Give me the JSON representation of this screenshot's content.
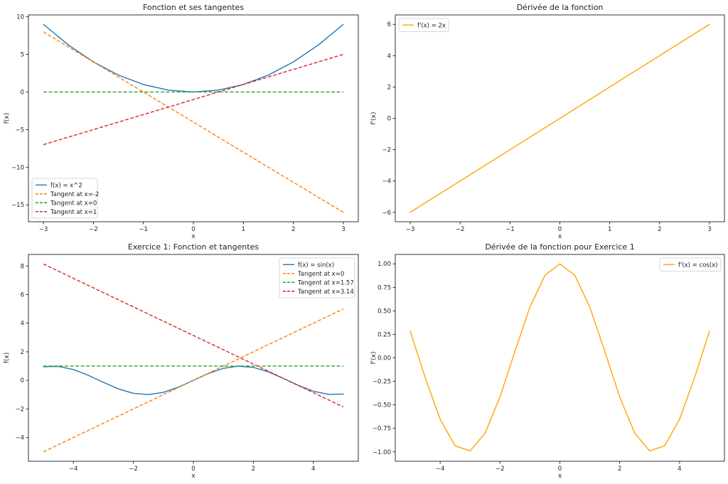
{
  "chart_data": [
    {
      "type": "line",
      "title": "Fonction et ses tangentes",
      "xlabel": "x",
      "ylabel": "f(x)",
      "xlim": [
        -3.3,
        3.3
      ],
      "ylim": [
        -17.25,
        10.25
      ],
      "xticks": [
        -3,
        -2,
        -1,
        0,
        1,
        2,
        3
      ],
      "yticks": [
        -15,
        -10,
        -5,
        0,
        5,
        10
      ],
      "xtick_labels": [
        "−3",
        "−2",
        "−1",
        "0",
        "1",
        "2",
        "3"
      ],
      "ytick_labels": [
        "−15",
        "−10",
        "−5",
        "0",
        "5",
        "10"
      ],
      "legend_position": "lower-left",
      "series": [
        {
          "name": "f(x) = x^2",
          "color": "#1f77b4",
          "style": "solid",
          "x": [
            -3,
            -2.5,
            -2,
            -1.5,
            -1,
            -0.5,
            0,
            0.5,
            1,
            1.5,
            2,
            2.5,
            3
          ],
          "y": [
            9,
            6.25,
            4,
            2.25,
            1,
            0.25,
            0,
            0.25,
            1,
            2.25,
            4,
            6.25,
            9
          ]
        },
        {
          "name": "Tangent at x=-2",
          "color": "#ff7f0e",
          "style": "dashed",
          "x": [
            -3,
            3
          ],
          "y": [
            8,
            -16
          ]
        },
        {
          "name": "Tangent at x=0",
          "color": "#2ca02c",
          "style": "dashed",
          "x": [
            -3,
            3
          ],
          "y": [
            0,
            0
          ]
        },
        {
          "name": "Tangent at x=1",
          "color": "#d62728",
          "style": "dashed",
          "x": [
            -3,
            3
          ],
          "y": [
            -7,
            5
          ]
        }
      ]
    },
    {
      "type": "line",
      "title": "Dérivée de la fonction",
      "xlabel": "x",
      "ylabel": "f'(x)",
      "xlim": [
        -3.3,
        3.3
      ],
      "ylim": [
        -6.6,
        6.6
      ],
      "xticks": [
        -3,
        -2,
        -1,
        0,
        1,
        2,
        3
      ],
      "yticks": [
        -6,
        -4,
        -2,
        0,
        2,
        4,
        6
      ],
      "xtick_labels": [
        "−3",
        "−2",
        "−1",
        "0",
        "1",
        "2",
        "3"
      ],
      "ytick_labels": [
        "−6",
        "−4",
        "−2",
        "0",
        "2",
        "4",
        "6"
      ],
      "legend_position": "upper-left",
      "series": [
        {
          "name": "f'(x) = 2x",
          "color": "#ffa500",
          "style": "solid",
          "x": [
            -3,
            3
          ],
          "y": [
            -6,
            6
          ]
        }
      ]
    },
    {
      "type": "line",
      "title": "Exercice 1: Fonction et tangentes",
      "xlabel": "x",
      "ylabel": "f(x)",
      "xlim": [
        -5.5,
        5.5
      ],
      "ylim": [
        -5.66,
        8.81
      ],
      "xticks": [
        -4,
        -2,
        0,
        2,
        4
      ],
      "yticks": [
        -4,
        -2,
        0,
        2,
        4,
        6,
        8
      ],
      "xtick_labels": [
        "−4",
        "−2",
        "0",
        "2",
        "4"
      ],
      "ytick_labels": [
        "−4",
        "−2",
        "0",
        "2",
        "4",
        "6",
        "8"
      ],
      "legend_position": "upper-right",
      "series": [
        {
          "name": "f(x) = sin(x)",
          "color": "#1f77b4",
          "style": "solid",
          "x": [
            -5,
            -4.5,
            -4,
            -3.5,
            -3,
            -2.5,
            -2,
            -1.5,
            -1,
            -0.5,
            0,
            0.5,
            1,
            1.5,
            2,
            2.5,
            3,
            3.5,
            4,
            4.5,
            5
          ],
          "y": [
            0.959,
            0.978,
            0.757,
            0.351,
            -0.141,
            -0.598,
            -0.909,
            -0.997,
            -0.841,
            -0.479,
            0,
            0.479,
            0.841,
            0.997,
            0.909,
            0.598,
            0.141,
            -0.351,
            -0.757,
            -0.978,
            -0.959
          ]
        },
        {
          "name": "Tangent at x=0",
          "color": "#ff7f0e",
          "style": "dashed",
          "x": [
            -5,
            5
          ],
          "y": [
            -5,
            5
          ]
        },
        {
          "name": "Tangent at x=1.57",
          "color": "#2ca02c",
          "style": "dashed",
          "x": [
            -5,
            5
          ],
          "y": [
            1,
            1
          ]
        },
        {
          "name": "Tangent at x=3.14",
          "color": "#d62728",
          "style": "dashed",
          "x": [
            -5,
            5
          ],
          "y": [
            8.14,
            -1.86
          ]
        }
      ]
    },
    {
      "type": "line",
      "title": "Dérivée de la fonction pour Exercice 1",
      "xlabel": "x",
      "ylabel": "f'(x)",
      "xlim": [
        -5.5,
        5.5
      ],
      "ylim": [
        -1.1,
        1.1
      ],
      "xticks": [
        -4,
        -2,
        0,
        2,
        4
      ],
      "yticks": [
        -1.0,
        -0.75,
        -0.5,
        -0.25,
        0.0,
        0.25,
        0.5,
        0.75,
        1.0
      ],
      "xtick_labels": [
        "−4",
        "−2",
        "0",
        "2",
        "4"
      ],
      "ytick_labels": [
        "−1.00",
        "−0.75",
        "−0.50",
        "−0.25",
        "0.00",
        "0.25",
        "0.50",
        "0.75",
        "1.00"
      ],
      "legend_position": "upper-right",
      "series": [
        {
          "name": "f'(x) = cos(x)",
          "color": "#ffa500",
          "style": "solid",
          "x": [
            -5,
            -4.5,
            -4,
            -3.5,
            -3,
            -2.5,
            -2,
            -1.5,
            -1,
            -0.5,
            0,
            0.5,
            1,
            1.5,
            2,
            2.5,
            3,
            3.5,
            4,
            4.5,
            5
          ],
          "y": [
            0.284,
            -0.211,
            -0.654,
            -0.936,
            -0.99,
            -0.801,
            -0.416,
            0.071,
            0.54,
            0.878,
            1,
            0.878,
            0.54,
            0.071,
            -0.416,
            -0.801,
            -0.99,
            -0.936,
            -0.654,
            -0.211,
            0.284
          ]
        }
      ]
    }
  ]
}
